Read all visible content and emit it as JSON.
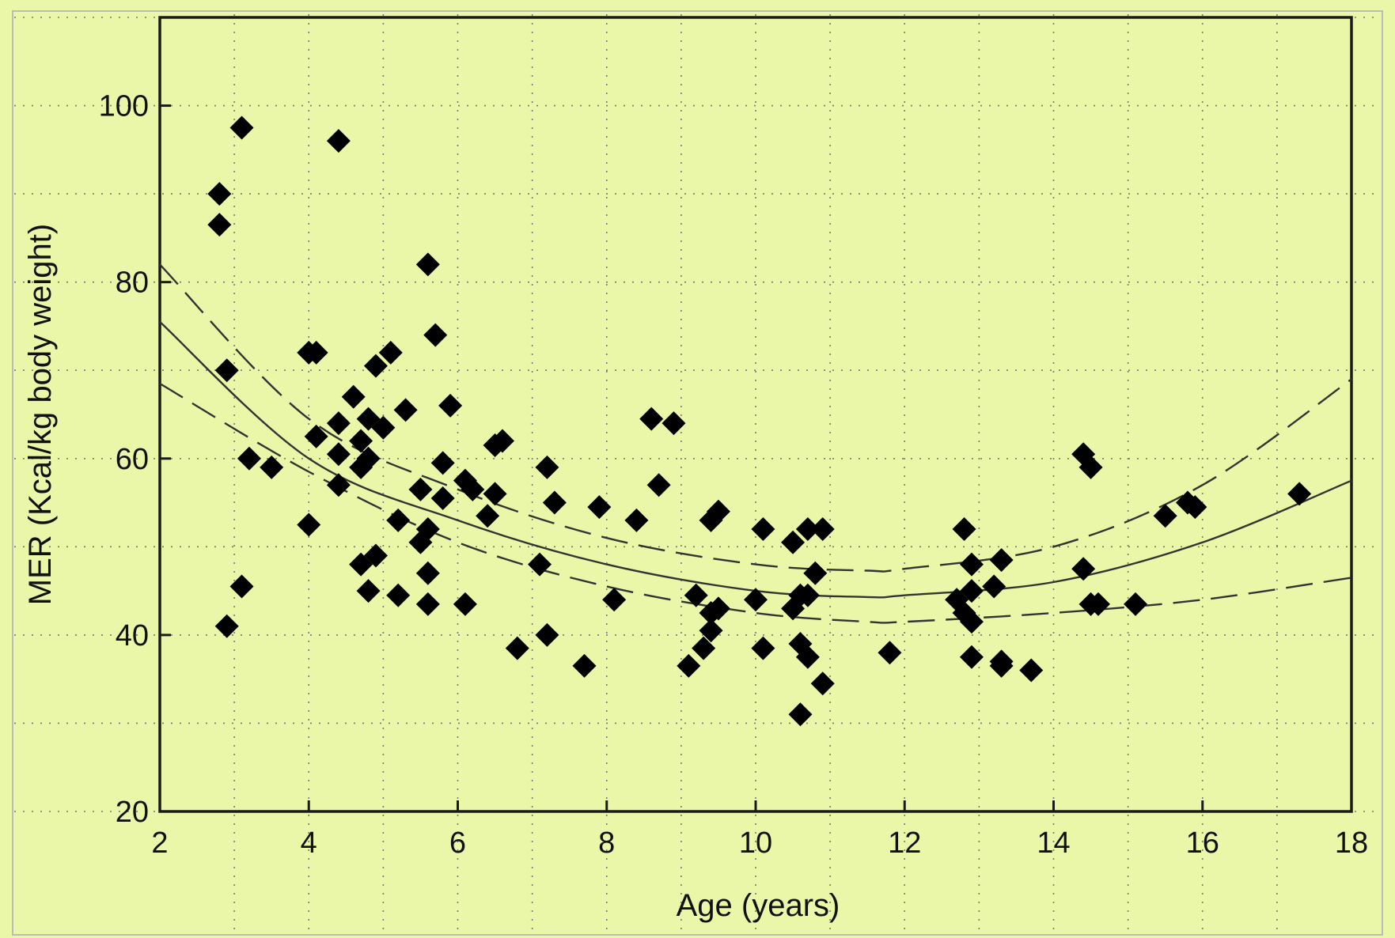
{
  "colors": {
    "background": "#eaf7a8",
    "axis": "#1a1a1a",
    "marker": "#000000",
    "fit_line": "#333333",
    "grid": "#777777"
  },
  "chart_data": {
    "type": "scatter",
    "title": "",
    "xlabel": "Age (years)",
    "ylabel": "MER (Kcal/kg body weight)",
    "xlim": [
      2,
      18
    ],
    "ylim": [
      20,
      110
    ],
    "xticks": [
      2,
      4,
      6,
      8,
      10,
      12,
      14,
      16,
      18
    ],
    "yticks": [
      20,
      40,
      60,
      80,
      100
    ],
    "grid": "dotted",
    "marker": "diamond",
    "points": [
      [
        2.8,
        90
      ],
      [
        2.8,
        86.5
      ],
      [
        3.1,
        97.5
      ],
      [
        2.9,
        70
      ],
      [
        3.2,
        60
      ],
      [
        3.1,
        45.5
      ],
      [
        2.9,
        41
      ],
      [
        3.5,
        59
      ],
      [
        4.0,
        72
      ],
      [
        4.1,
        72
      ],
      [
        4.4,
        96
      ],
      [
        4.1,
        62.5
      ],
      [
        4.0,
        52.5
      ],
      [
        4.4,
        64
      ],
      [
        4.4,
        60.5
      ],
      [
        4.4,
        57
      ],
      [
        4.6,
        67
      ],
      [
        4.7,
        62
      ],
      [
        4.8,
        64.5
      ],
      [
        4.7,
        59
      ],
      [
        4.8,
        60
      ],
      [
        4.7,
        48
      ],
      [
        4.8,
        45
      ],
      [
        4.9,
        49
      ],
      [
        4.9,
        70.5
      ],
      [
        5.1,
        72
      ],
      [
        5.0,
        63.5
      ],
      [
        5.3,
        65.5
      ],
      [
        5.2,
        53
      ],
      [
        5.2,
        44.5
      ],
      [
        5.5,
        56.5
      ],
      [
        5.5,
        50.5
      ],
      [
        5.6,
        52
      ],
      [
        5.6,
        47
      ],
      [
        5.6,
        43.5
      ],
      [
        5.6,
        82
      ],
      [
        5.7,
        74
      ],
      [
        5.8,
        59.5
      ],
      [
        5.8,
        55.5
      ],
      [
        5.9,
        66
      ],
      [
        6.1,
        57.5
      ],
      [
        6.2,
        56.5
      ],
      [
        6.1,
        43.5
      ],
      [
        6.4,
        53.5
      ],
      [
        6.5,
        56
      ],
      [
        6.5,
        61.5
      ],
      [
        6.6,
        62
      ],
      [
        6.8,
        38.5
      ],
      [
        7.1,
        48
      ],
      [
        7.2,
        59
      ],
      [
        7.3,
        55
      ],
      [
        7.2,
        40
      ],
      [
        7.7,
        36.5
      ],
      [
        7.9,
        54.5
      ],
      [
        8.1,
        44
      ],
      [
        8.4,
        53
      ],
      [
        8.6,
        64.5
      ],
      [
        8.9,
        64
      ],
      [
        8.7,
        57
      ],
      [
        9.1,
        36.5
      ],
      [
        9.2,
        44.5
      ],
      [
        9.3,
        38.5
      ],
      [
        9.4,
        40.5
      ],
      [
        9.4,
        42.5
      ],
      [
        9.5,
        43
      ],
      [
        9.4,
        53
      ],
      [
        9.5,
        54
      ],
      [
        10.0,
        44
      ],
      [
        10.1,
        52
      ],
      [
        10.1,
        38.5
      ],
      [
        10.5,
        50.5
      ],
      [
        10.5,
        43
      ],
      [
        10.6,
        44.5
      ],
      [
        10.6,
        39
      ],
      [
        10.7,
        52
      ],
      [
        10.7,
        44.5
      ],
      [
        10.7,
        37.5
      ],
      [
        10.8,
        47
      ],
      [
        10.9,
        52
      ],
      [
        10.9,
        34.5
      ],
      [
        10.6,
        31
      ],
      [
        11.8,
        38
      ],
      [
        12.7,
        44
      ],
      [
        12.8,
        52
      ],
      [
        12.8,
        42.5
      ],
      [
        12.9,
        48
      ],
      [
        12.9,
        45
      ],
      [
        12.9,
        41.5
      ],
      [
        12.9,
        37.5
      ],
      [
        13.2,
        45.5
      ],
      [
        13.3,
        48.5
      ],
      [
        13.3,
        37
      ],
      [
        13.3,
        36.5
      ],
      [
        13.7,
        36
      ],
      [
        14.4,
        60.5
      ],
      [
        14.5,
        59
      ],
      [
        14.4,
        47.5
      ],
      [
        14.5,
        43.5
      ],
      [
        14.6,
        43.5
      ],
      [
        15.1,
        43.5
      ],
      [
        15.5,
        53.5
      ],
      [
        15.8,
        55
      ],
      [
        15.9,
        54.5
      ],
      [
        17.3,
        56
      ]
    ],
    "curves": [
      {
        "style": "solid",
        "x": [
          2,
          4,
          6,
          8,
          10,
          11.5,
          12,
          14,
          16,
          18
        ],
        "y": [
          75.5,
          60,
          53,
          48,
          45,
          44.3,
          44.5,
          46,
          50.5,
          57.5
        ]
      },
      {
        "style": "dashed",
        "x": [
          2,
          4,
          6,
          8,
          10,
          11.5,
          12,
          14,
          16,
          18
        ],
        "y": [
          82,
          64.5,
          56.5,
          51,
          48,
          47.3,
          47.5,
          50,
          57,
          69
        ]
      },
      {
        "style": "dashed",
        "x": [
          2,
          4,
          6,
          8,
          10,
          11.5,
          12,
          14,
          16,
          18
        ],
        "y": [
          68.5,
          58.5,
          50.5,
          45.5,
          42.5,
          41.5,
          41.5,
          42.5,
          44,
          46.5
        ]
      }
    ]
  }
}
